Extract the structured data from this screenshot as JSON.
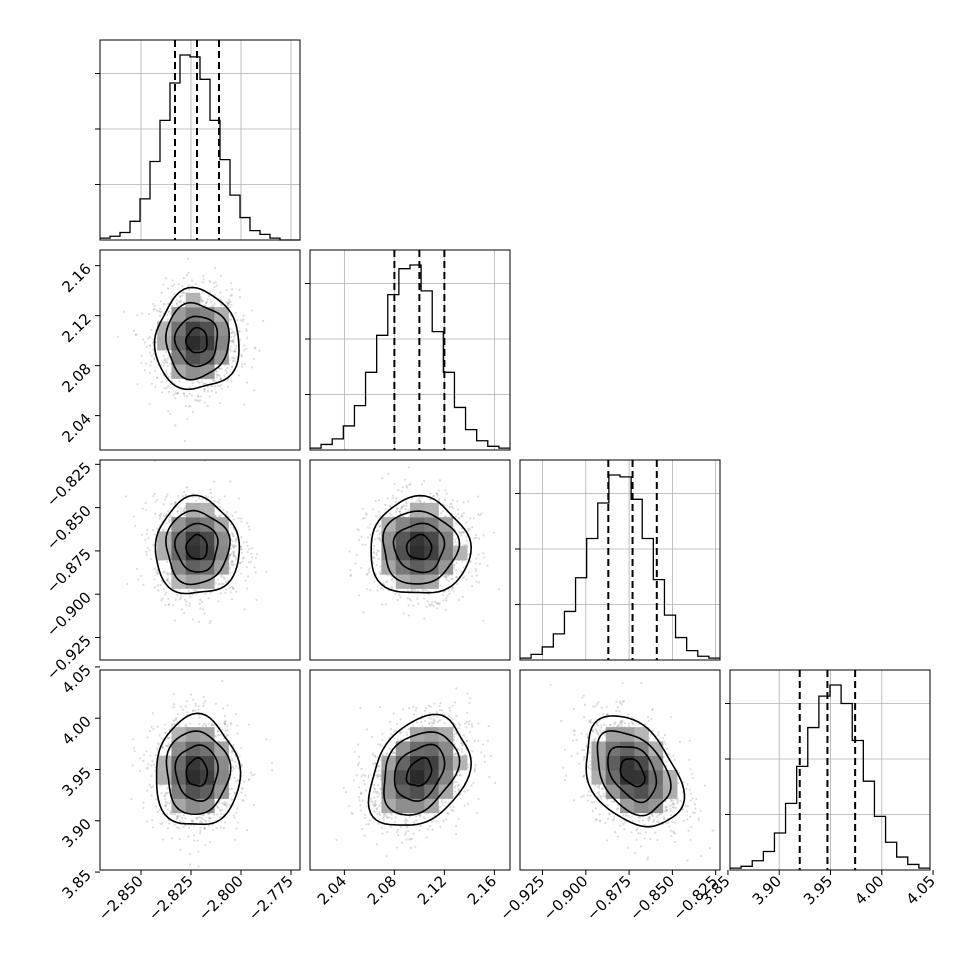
{
  "chart_data": {
    "type": "corner",
    "grid": true,
    "parameters": [
      {
        "mean": -2.822,
        "sd": 0.0105,
        "range": [
          -2.8705,
          -2.7705
        ],
        "ticks": [
          {
            "value": -2.85,
            "label": "−2.850"
          },
          {
            "value": -2.825,
            "label": "−2.825"
          },
          {
            "value": -2.8,
            "label": "−2.800"
          },
          {
            "value": -2.775,
            "label": "−2.775"
          }
        ],
        "quantiles": [
          -2.833,
          -2.822,
          -2.811
        ],
        "hist_bins": [
          1,
          2,
          4,
          10,
          22,
          42,
          64,
          84,
          99,
          98,
          86,
          64,
          43,
          24,
          12,
          5,
          3,
          1,
          0,
          0
        ]
      },
      {
        "mean": 2.1,
        "sd": 0.02,
        "range": [
          2.0125,
          2.1725
        ],
        "ticks": [
          {
            "value": 2.04,
            "label": "2.04"
          },
          {
            "value": 2.08,
            "label": "2.08"
          },
          {
            "value": 2.12,
            "label": "2.12"
          },
          {
            "value": 2.16,
            "label": "2.16"
          }
        ],
        "quantiles": [
          2.08,
          2.1,
          2.12
        ],
        "hist_bins": [
          1,
          3,
          6,
          13,
          24,
          42,
          62,
          84,
          98,
          100,
          86,
          64,
          42,
          23,
          11,
          5,
          2,
          1
        ]
      },
      {
        "mean": -0.873,
        "sd": 0.014,
        "range": [
          -0.938,
          -0.8225
        ],
        "ticks": [
          {
            "value": -0.925,
            "label": "−0.925"
          },
          {
            "value": -0.9,
            "label": "−0.900"
          },
          {
            "value": -0.875,
            "label": "−0.875"
          },
          {
            "value": -0.85,
            "label": "−0.850"
          },
          {
            "value": -0.825,
            "label": "−0.825"
          }
        ],
        "quantiles": [
          -0.887,
          -0.873,
          -0.859
        ],
        "hist_bins": [
          1,
          3,
          7,
          14,
          26,
          44,
          65,
          84,
          99,
          98,
          86,
          65,
          43,
          24,
          12,
          5,
          2,
          1
        ]
      },
      {
        "mean": 3.947,
        "sd": 0.027,
        "range": [
          3.852,
          4.047
        ],
        "ticks": [
          {
            "value": 3.85,
            "label": "3.85"
          },
          {
            "value": 3.9,
            "label": "3.90"
          },
          {
            "value": 3.95,
            "label": "3.95"
          },
          {
            "value": 4.0,
            "label": "4.00"
          },
          {
            "value": 4.05,
            "label": "4.05"
          }
        ],
        "quantiles": [
          3.92,
          3.947,
          3.974
        ],
        "hist_bins": [
          1,
          2,
          5,
          10,
          20,
          36,
          56,
          77,
          94,
          100,
          90,
          70,
          48,
          29,
          15,
          7,
          3,
          1
        ]
      }
    ],
    "correlations": [
      {
        "i": 1,
        "j": 0,
        "rho": 0.0
      },
      {
        "i": 2,
        "j": 0,
        "rho": 0.0
      },
      {
        "i": 2,
        "j": 1,
        "rho": 0.0
      },
      {
        "i": 3,
        "j": 0,
        "rho": 0.0
      },
      {
        "i": 3,
        "j": 1,
        "rho": 0.3
      },
      {
        "i": 3,
        "j": 2,
        "rho": -0.35
      }
    ],
    "contour_levels_sigma": [
      0.5,
      1.0,
      1.5,
      2.0
    ],
    "scatter_samples_per_panel": 1400
  }
}
